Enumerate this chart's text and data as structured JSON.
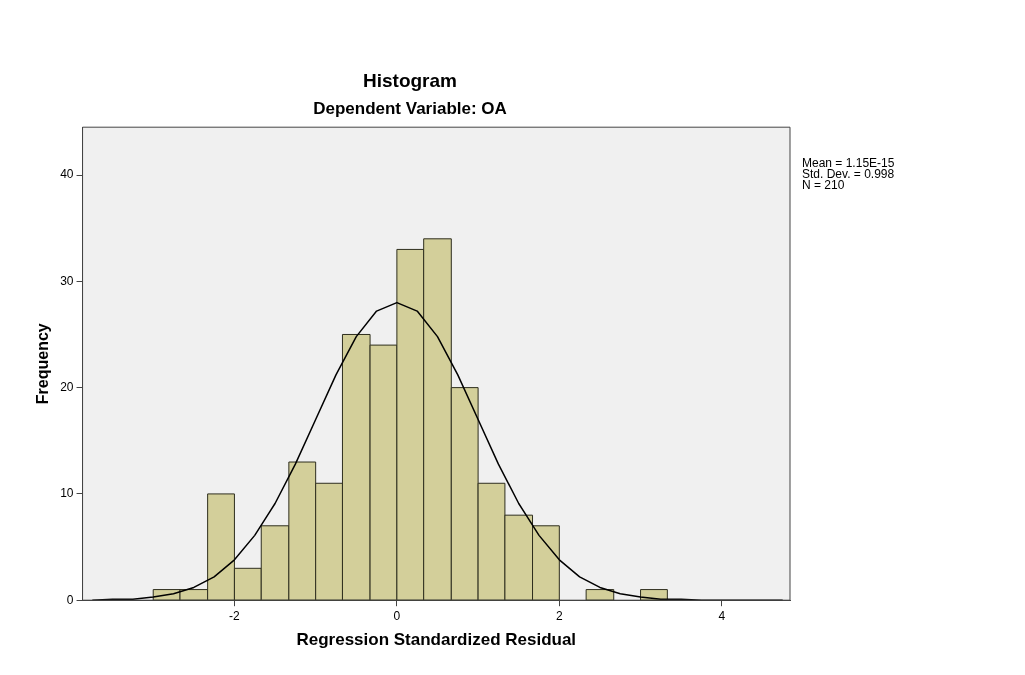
{
  "chart_data": {
    "type": "histogram",
    "title": "Histogram",
    "subtitle": "Dependent Variable: OA",
    "xlabel": "Regression Standardized Residual",
    "ylabel": "Frequency",
    "series": [
      {
        "color": "#d3cf9a",
        "bins": [
          -3,
          -2.67,
          -2.33,
          -2,
          -1.67,
          -1.33,
          -1,
          -0.67,
          -0.33,
          0,
          0.33,
          0.67,
          1,
          1.33,
          1.67,
          2,
          2.33,
          2.67,
          3,
          3.33
        ],
        "values": [
          1,
          1,
          10,
          3,
          7,
          13,
          11,
          25,
          24,
          33,
          34,
          20,
          11,
          8,
          7,
          0,
          1,
          0,
          1
        ]
      },
      {
        "type": "line",
        "color": "#000000",
        "x": [
          -3.75,
          -3.5,
          -3.25,
          -3,
          -2.75,
          -2.5,
          -2.25,
          -2,
          -1.75,
          -1.5,
          -1.25,
          -1,
          -0.75,
          -0.5,
          -0.25,
          0,
          0.25,
          0.5,
          0.75,
          1,
          1.25,
          1.5,
          1.75,
          2,
          2.25,
          2.5,
          2.75,
          3,
          3.25,
          3.5,
          3.75,
          4.75
        ],
        "values": [
          0,
          0.1,
          0.1,
          0.3,
          0.6,
          1.2,
          2.2,
          3.8,
          6.1,
          9.1,
          12.8,
          17,
          21.2,
          24.8,
          27.2,
          28,
          27.2,
          24.8,
          21.2,
          17,
          12.8,
          9.1,
          6.1,
          3.8,
          2.2,
          1.2,
          0.6,
          0.3,
          0.1,
          0.1,
          0,
          0
        ]
      }
    ],
    "xlim": [
      -3.87,
      4.84
    ],
    "ylim": [
      0,
      44.5
    ],
    "xticks": [
      -2,
      0,
      2,
      4
    ],
    "yticks": [
      0,
      10,
      20,
      30,
      40
    ],
    "grid": false,
    "legend": false,
    "marker": "none",
    "line_style": "solid",
    "annotations": [
      "Mean = 1.15E-15",
      "Std. Dev. = 0.998",
      "N = 210"
    ]
  }
}
